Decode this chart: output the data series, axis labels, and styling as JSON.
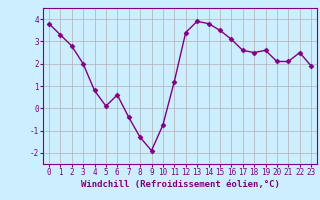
{
  "x": [
    0,
    1,
    2,
    3,
    4,
    5,
    6,
    7,
    8,
    9,
    10,
    11,
    12,
    13,
    14,
    15,
    16,
    17,
    18,
    19,
    20,
    21,
    22,
    23
  ],
  "y": [
    3.8,
    3.3,
    2.8,
    2.0,
    0.8,
    0.1,
    0.6,
    -0.4,
    -1.3,
    -1.9,
    -0.75,
    1.2,
    3.4,
    3.9,
    3.8,
    3.5,
    3.1,
    2.6,
    2.5,
    2.6,
    2.1,
    2.1,
    2.5,
    1.9
  ],
  "line_color": "#800080",
  "marker": "D",
  "marker_size": 2.5,
  "bg_color": "#cceeff",
  "grid_color": "#b0b0b0",
  "xlabel": "Windchill (Refroidissement éolien,°C)",
  "ylabel": "",
  "xlim": [
    -0.5,
    23.5
  ],
  "ylim": [
    -2.5,
    4.5
  ],
  "yticks": [
    -2,
    -1,
    0,
    1,
    2,
    3,
    4
  ],
  "xticks": [
    0,
    1,
    2,
    3,
    4,
    5,
    6,
    7,
    8,
    9,
    10,
    11,
    12,
    13,
    14,
    15,
    16,
    17,
    18,
    19,
    20,
    21,
    22,
    23
  ],
  "tick_label_size": 5.5,
  "xlabel_size": 6.5,
  "line_width": 1.0
}
